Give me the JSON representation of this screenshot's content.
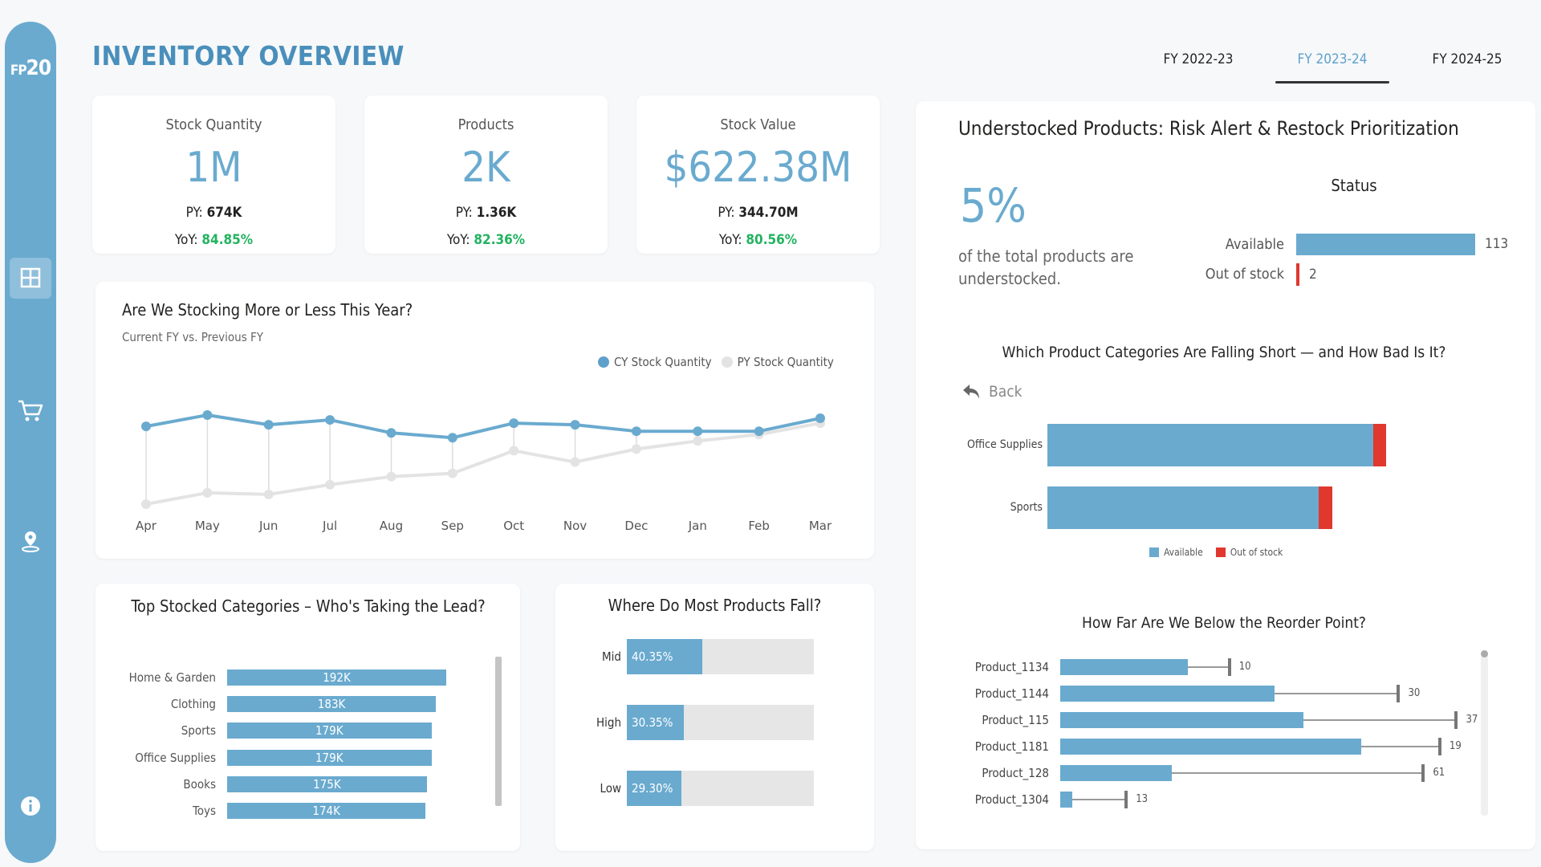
{
  "sidebar": {
    "logo_prefix": "FP",
    "logo_number": "20",
    "items": [
      {
        "icon": "grid-icon",
        "active": true
      },
      {
        "icon": "cart-icon"
      },
      {
        "icon": "location-icon"
      },
      {
        "icon": "info-icon"
      }
    ]
  },
  "header": {
    "title": "INVENTORY OVERVIEW",
    "tabs": [
      {
        "label": "FY 2022-23"
      },
      {
        "label": "FY 2023-24",
        "active": true
      },
      {
        "label": "FY 2024-25"
      }
    ]
  },
  "kpis": [
    {
      "title": "Stock Quantity",
      "value": "1M",
      "py_label": "PY:",
      "py": "674K",
      "yoy_label": "YoY:",
      "yoy": "84.85%"
    },
    {
      "title": "Products",
      "value": "2K",
      "py_label": "PY:",
      "py": "1.36K",
      "yoy_label": "YoY:",
      "yoy": "82.36%"
    },
    {
      "title": "Stock Value",
      "value": "$622.38M",
      "py_label": "PY:",
      "py": "344.70M",
      "yoy_label": "YoY:",
      "yoy": "80.56%"
    }
  ],
  "colors": {
    "accent": "#6aaacf",
    "title": "#4a8fbb",
    "positive": "#22b35f",
    "alert": "#e0382e",
    "py_line": "#e3e3e3"
  },
  "chart_data": [
    {
      "type": "line",
      "title": "Are We Stocking More or Less This Year?",
      "subtitle": "Current FY vs. Previous FY",
      "legend_position": "top-right",
      "grid": false,
      "categories": [
        "Apr",
        "May",
        "Jun",
        "Jul",
        "Aug",
        "Sep",
        "Oct",
        "Nov",
        "Dec",
        "Jan",
        "Feb",
        "Mar"
      ],
      "series": [
        {
          "name": "CY Stock Quantity",
          "values": [
            83,
            90,
            84,
            87,
            79,
            76,
            85,
            84,
            80,
            80,
            80,
            88
          ]
        },
        {
          "name": "PY Stock Quantity",
          "values": [
            35,
            42,
            41,
            47,
            52,
            54,
            68,
            61,
            69,
            74,
            78,
            85
          ]
        }
      ]
    },
    {
      "type": "bar",
      "orientation": "horizontal",
      "title": "Top Stocked Categories – Who's Taking the Lead?",
      "categories": [
        "Home & Garden",
        "Clothing",
        "Sports",
        "Office Supplies",
        "Books",
        "Toys"
      ],
      "values": [
        192,
        183,
        179,
        179,
        175,
        174
      ],
      "data_labels": [
        "192K",
        "183K",
        "179K",
        "179K",
        "175K",
        "174K"
      ]
    },
    {
      "type": "bar",
      "orientation": "horizontal",
      "title": "Where Do Most Products Fall?",
      "categories": [
        "Mid",
        "High",
        "Low"
      ],
      "values": [
        40.35,
        30.35,
        29.3
      ],
      "data_labels": [
        "40.35%",
        "30.35%",
        "29.30%"
      ]
    },
    {
      "type": "bar",
      "orientation": "horizontal",
      "title": "Status",
      "categories": [
        "Available",
        "Out of stock"
      ],
      "values": [
        113,
        2
      ],
      "data_labels": [
        "113",
        "2"
      ]
    },
    {
      "type": "bar",
      "orientation": "horizontal",
      "stacked": true,
      "title": "Which Product Categories Are Falling Short — and How Bad Is It?",
      "categories": [
        "Office Supplies",
        "Sports"
      ],
      "series": [
        {
          "name": "Available",
          "values": [
            24,
            20
          ]
        },
        {
          "name": "Out of stock",
          "values": [
            1,
            1
          ]
        }
      ],
      "legend_position": "bottom"
    },
    {
      "type": "bar",
      "orientation": "horizontal",
      "title": "How Far Are We Below the Reorder Point?",
      "categories": [
        "Product_1134",
        "Product_1144",
        "Product_115",
        "Product_1181",
        "Product_128",
        "Product_1304"
      ],
      "values": [
        31,
        52,
        59,
        73,
        27,
        3
      ],
      "gap_to_reorder": [
        10,
        30,
        37,
        19,
        61,
        13
      ],
      "data_labels": [
        "10",
        "30",
        "37",
        "19",
        "61",
        "13"
      ]
    }
  ],
  "understock": {
    "title": "Understocked Products: Risk Alert & Restock Prioritization",
    "percent": "5%",
    "caption_line1": "of the total products are",
    "caption_line2": "understocked.",
    "back_label": "Back"
  }
}
